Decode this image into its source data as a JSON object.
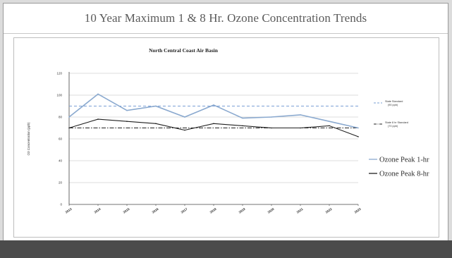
{
  "header": {
    "title": "10 Year Maximum 1 & 8 Hr. Ozone Concentration Trends"
  },
  "chart_data": {
    "type": "line",
    "title": "North Central Coast Air Basin",
    "xlabel": "",
    "ylabel": "O3 Concentration (ppb)",
    "ylim": [
      0,
      120
    ],
    "yticks": [
      0,
      20,
      40,
      60,
      80,
      100,
      120
    ],
    "categories": [
      "2013",
      "2014",
      "2015",
      "2016",
      "2017",
      "2018",
      "2019",
      "2020",
      "2021",
      "2022",
      "2023"
    ],
    "series": [
      {
        "name": "Ozone Peak 1-hr",
        "color": "#8aa9cf",
        "values": [
          80,
          101,
          86,
          90,
          80,
          91,
          79,
          80,
          82,
          76,
          70
        ]
      },
      {
        "name": "Ozone Peak 8-hr",
        "color": "#1f1f1f",
        "values": [
          70,
          78,
          76,
          74,
          68,
          74,
          72,
          70,
          70,
          72,
          62
        ]
      }
    ],
    "reference_lines": [
      {
        "label": "State Standard (90 ppb)",
        "value": 90,
        "color": "#7a9fd6",
        "style": "dashed"
      },
      {
        "label": "State 8 hr Standard (70 ppb)",
        "value": 70,
        "color": "#222222",
        "style": "dashdot"
      }
    ],
    "grid": true,
    "legend_position": "right"
  }
}
